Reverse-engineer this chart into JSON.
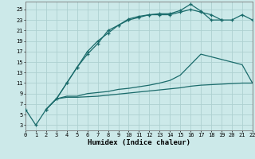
{
  "xlabel": "Humidex (Indice chaleur)",
  "bg_color": "#cce9e9",
  "grid_color": "#aed0d0",
  "line_color": "#1a6b6b",
  "x_ticks": [
    0,
    1,
    2,
    3,
    4,
    5,
    6,
    7,
    8,
    9,
    10,
    11,
    12,
    13,
    14,
    15,
    16,
    17,
    18,
    19,
    20,
    21,
    22
  ],
  "y_ticks": [
    3,
    5,
    7,
    9,
    11,
    13,
    15,
    17,
    19,
    21,
    23,
    25
  ],
  "xlim": [
    0,
    22
  ],
  "ylim": [
    2,
    26.5
  ],
  "line1_x": [
    0,
    1,
    2,
    3,
    4,
    5,
    6,
    7,
    8,
    9,
    10,
    11,
    12,
    13,
    14,
    15,
    16,
    17,
    18,
    19
  ],
  "line1_y": [
    6,
    3,
    6,
    8,
    11,
    14,
    17,
    19,
    20.5,
    22,
    23.2,
    23.7,
    24.0,
    24.2,
    24.2,
    24.8,
    26.0,
    24.7,
    23.0,
    23.0
  ],
  "line2_x": [
    2,
    3,
    4,
    5,
    6,
    7,
    8,
    9,
    10,
    11,
    12,
    13,
    14,
    15,
    16,
    17,
    18,
    19,
    20,
    21,
    22
  ],
  "line2_y": [
    6,
    8,
    11,
    14,
    16.5,
    18.5,
    21,
    22,
    23,
    23.5,
    24,
    24,
    24,
    24.5,
    25,
    24.5,
    24,
    23,
    23,
    24,
    23
  ],
  "line3_x": [
    2,
    3,
    4,
    5,
    6,
    7,
    8,
    9,
    10,
    11,
    12,
    13,
    14,
    15,
    16,
    17,
    21,
    22
  ],
  "line3_y": [
    6,
    8,
    8.5,
    8.5,
    9.0,
    9.2,
    9.4,
    9.8,
    10.0,
    10.3,
    10.6,
    11.0,
    11.5,
    12.5,
    14.5,
    16.5,
    14.5,
    11
  ],
  "line4_x": [
    2,
    3,
    4,
    5,
    6,
    7,
    8,
    9,
    10,
    11,
    12,
    13,
    14,
    15,
    16,
    17,
    18,
    19,
    20,
    21,
    22
  ],
  "line4_y": [
    6,
    8,
    8.3,
    8.3,
    8.4,
    8.5,
    8.7,
    8.9,
    9.1,
    9.3,
    9.5,
    9.7,
    9.9,
    10.1,
    10.4,
    10.6,
    10.7,
    10.8,
    10.9,
    11.0,
    11.0
  ]
}
